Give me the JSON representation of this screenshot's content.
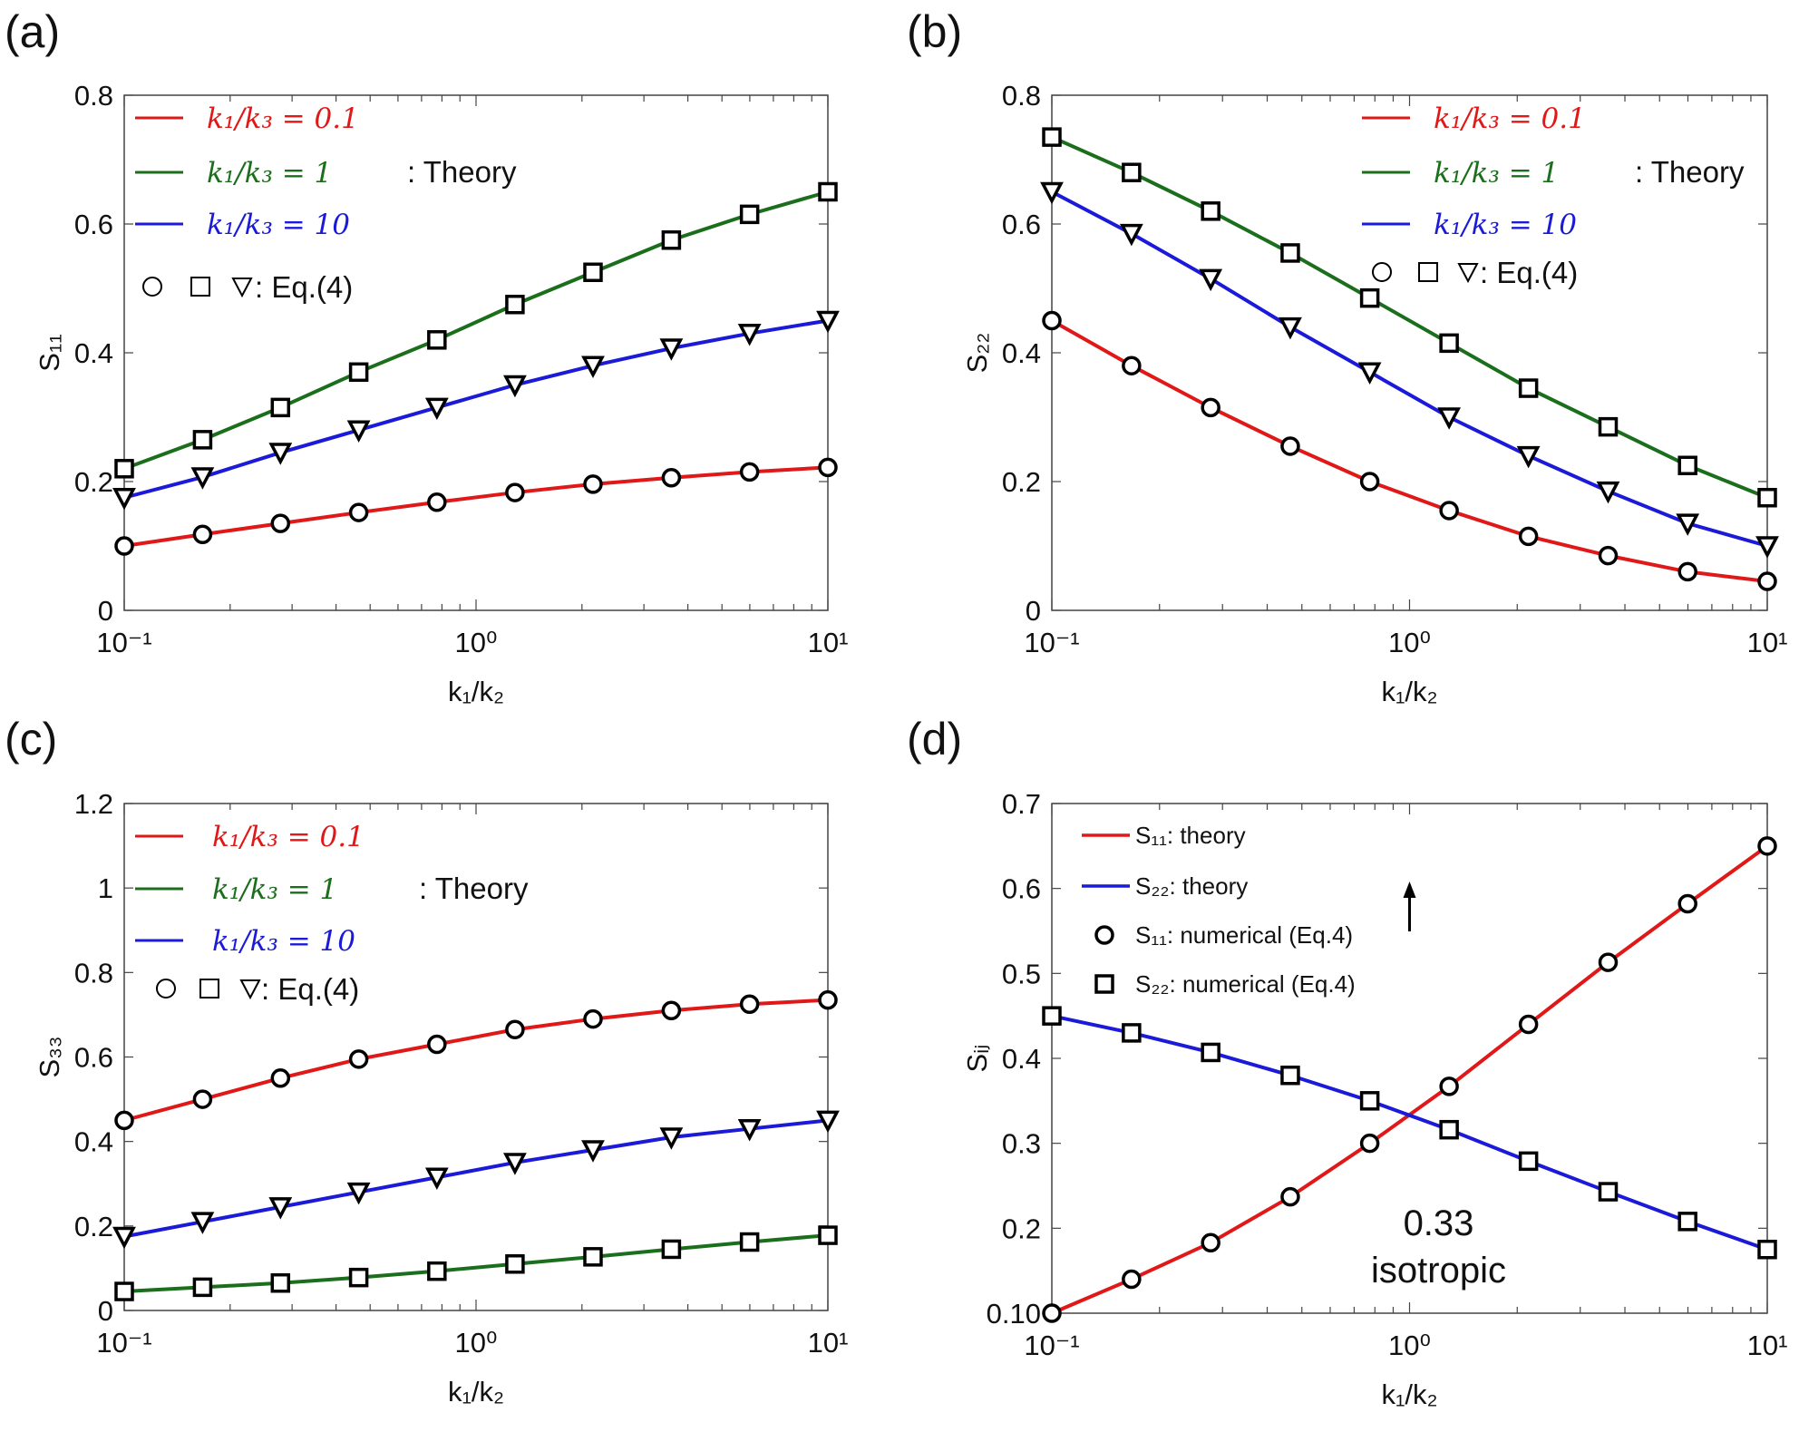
{
  "chart_data": [
    {
      "panel": "(a)",
      "type": "line",
      "xscale": "log",
      "xlabel": "k₁/k₂",
      "ylabel": "S₁₁",
      "xlim": [
        0.1,
        10
      ],
      "ylim": [
        0,
        0.8
      ],
      "xticks": [
        "10⁻¹",
        "10⁰",
        "10¹"
      ],
      "yticks": [
        "0",
        "0.2",
        "0.4",
        "0.6",
        "0.8"
      ],
      "x": [
        0.1,
        0.167,
        0.278,
        0.464,
        0.774,
        1.29,
        2.15,
        3.59,
        5.99,
        10
      ],
      "series": [
        {
          "name": "k₁/k₃ = 0.1",
          "color": "#e01818",
          "marker": "circle",
          "values": [
            0.1,
            0.118,
            0.135,
            0.152,
            0.168,
            0.183,
            0.196,
            0.206,
            0.215,
            0.222
          ]
        },
        {
          "name": "k₁/k₃ = 1",
          "color": "#1b6e1b",
          "marker": "square",
          "values": [
            0.22,
            0.265,
            0.315,
            0.37,
            0.42,
            0.475,
            0.525,
            0.575,
            0.615,
            0.65
          ]
        },
        {
          "name": "k₁/k₃ = 10",
          "color": "#1a1ad8",
          "marker": "triangle",
          "values": [
            0.175,
            0.207,
            0.245,
            0.28,
            0.315,
            0.35,
            0.38,
            0.407,
            0.43,
            0.45
          ]
        }
      ],
      "legend_theory": ": Theory",
      "legend_markers": ": Eq.(4)",
      "legend_placement": "top-left"
    },
    {
      "panel": "(b)",
      "type": "line",
      "xscale": "log",
      "xlabel": "k₁/k₂",
      "ylabel": "S₂₂",
      "xlim": [
        0.1,
        10
      ],
      "ylim": [
        0,
        0.8
      ],
      "xticks": [
        "10⁻¹",
        "10⁰",
        "10¹"
      ],
      "yticks": [
        "0",
        "0.2",
        "0.4",
        "0.6",
        "0.8"
      ],
      "x": [
        0.1,
        0.167,
        0.278,
        0.464,
        0.774,
        1.29,
        2.15,
        3.59,
        5.99,
        10
      ],
      "series": [
        {
          "name": "k₁/k₃ = 0.1",
          "color": "#e01818",
          "marker": "circle",
          "values": [
            0.45,
            0.38,
            0.315,
            0.255,
            0.2,
            0.155,
            0.115,
            0.085,
            0.06,
            0.045
          ]
        },
        {
          "name": "k₁/k₃ = 1",
          "color": "#1b6e1b",
          "marker": "square",
          "values": [
            0.735,
            0.68,
            0.62,
            0.555,
            0.485,
            0.415,
            0.345,
            0.285,
            0.225,
            0.175
          ]
        },
        {
          "name": "k₁/k₃ = 10",
          "color": "#1a1ad8",
          "marker": "triangle",
          "values": [
            0.65,
            0.585,
            0.515,
            0.44,
            0.37,
            0.3,
            0.24,
            0.185,
            0.135,
            0.1
          ]
        }
      ],
      "legend_theory": ": Theory",
      "legend_markers": ": Eq.(4)",
      "legend_placement": "top-right"
    },
    {
      "panel": "(c)",
      "type": "line",
      "xscale": "log",
      "xlabel": "k₁/k₂",
      "ylabel": "S₃₃",
      "xlim": [
        0.1,
        10
      ],
      "ylim": [
        0,
        1.2
      ],
      "xticks": [
        "10⁻¹",
        "10⁰",
        "10¹"
      ],
      "yticks": [
        "0",
        "0.2",
        "0.4",
        "0.6",
        "0.8",
        "1",
        "1.2"
      ],
      "x": [
        0.1,
        0.167,
        0.278,
        0.464,
        0.774,
        1.29,
        2.15,
        3.59,
        5.99,
        10
      ],
      "series": [
        {
          "name": "k₁/k₃ = 0.1",
          "color": "#e01818",
          "marker": "circle",
          "values": [
            0.45,
            0.5,
            0.55,
            0.595,
            0.63,
            0.665,
            0.69,
            0.71,
            0.725,
            0.735
          ]
        },
        {
          "name": "k₁/k₃ = 1",
          "color": "#1b6e1b",
          "marker": "square",
          "values": [
            0.045,
            0.055,
            0.065,
            0.078,
            0.093,
            0.11,
            0.127,
            0.145,
            0.162,
            0.178
          ]
        },
        {
          "name": "k₁/k₃ = 10",
          "color": "#1a1ad8",
          "marker": "triangle",
          "values": [
            0.175,
            0.21,
            0.245,
            0.28,
            0.315,
            0.35,
            0.38,
            0.41,
            0.43,
            0.45
          ]
        }
      ],
      "legend_theory": ": Theory",
      "legend_markers": ": Eq.(4)",
      "legend_placement": "top-left"
    },
    {
      "panel": "(d)",
      "type": "line",
      "xscale": "log",
      "xlabel": "k₁/k₂",
      "ylabel": "Sᵢⱼ",
      "xlim": [
        0.1,
        10
      ],
      "ylim": [
        0.1,
        0.7
      ],
      "xticks": [
        "10⁻¹",
        "10⁰",
        "10¹"
      ],
      "yticks": [
        "0.10",
        "0.2",
        "0.3",
        "0.4",
        "0.5",
        "0.6",
        "0.7"
      ],
      "x": [
        0.1,
        0.167,
        0.278,
        0.464,
        0.774,
        1.29,
        2.15,
        3.59,
        5.99,
        10
      ],
      "series": [
        {
          "name": "S₁₁: theory",
          "marker_name": "S₁₁: numerical (Eq.4)",
          "color": "#e01818",
          "marker": "circle",
          "values": [
            0.1,
            0.14,
            0.183,
            0.237,
            0.3,
            0.367,
            0.44,
            0.513,
            0.582,
            0.65
          ]
        },
        {
          "name": "S₂₂: theory",
          "marker_name": "S₂₂: numerical (Eq.4)",
          "color": "#1a1ad8",
          "marker": "square",
          "values": [
            0.45,
            0.43,
            0.407,
            0.38,
            0.35,
            0.316,
            0.279,
            0.243,
            0.208,
            0.175
          ]
        }
      ],
      "annotation": {
        "value": "0.33",
        "label": "isotropic",
        "x": 1.0
      },
      "legend_placement": "top-left"
    }
  ]
}
